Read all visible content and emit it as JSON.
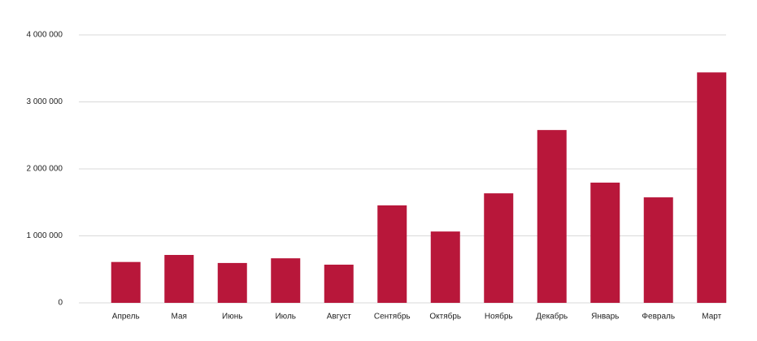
{
  "chart_data": {
    "type": "bar",
    "categories": [
      "Апрель",
      "Мая",
      "Июнь",
      "Июль",
      "Август",
      "Сентябрь",
      "Октябрь",
      "Ноябрь",
      "Декабрь",
      "Январь",
      "Февраль",
      "Март"
    ],
    "values": [
      610000,
      715000,
      595000,
      665000,
      570000,
      1455000,
      1065000,
      1635000,
      2580000,
      1795000,
      1575000,
      3440000
    ],
    "color": "#b8173a",
    "ylim": [
      0,
      4000000
    ],
    "yticks": [
      0,
      {
        "value": 1000000,
        "label": "1 000 000"
      },
      {
        "value": 2000000,
        "label": "2 000 000"
      },
      {
        "value": 3000000,
        "label": "3 000 000"
      },
      {
        "value": 4000000,
        "label": "4 000 000"
      }
    ],
    "grid": true
  }
}
